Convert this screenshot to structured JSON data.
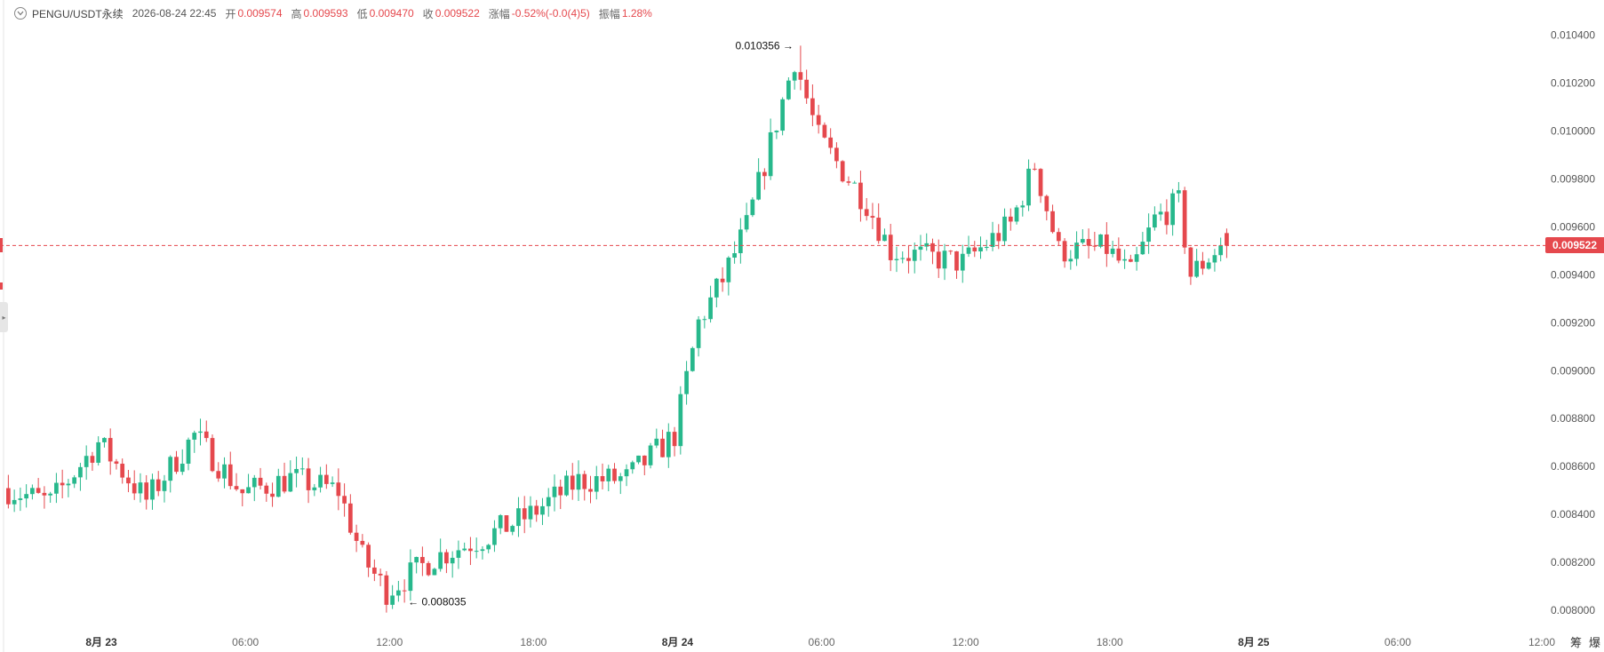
{
  "header": {
    "symbol": "PENGU/USDT永续",
    "datetime": "2026-08-24 22:45",
    "open_label": "开",
    "open": "0.009574",
    "high_label": "高",
    "high": "0.009593",
    "low_label": "低",
    "low": "0.009470",
    "close_label": "收",
    "close": "0.009522",
    "change_label": "涨幅",
    "change": "-0.52%(-0.0(4)5)",
    "amplitude_label": "振幅",
    "amplitude": "1.28%"
  },
  "current_price": "0.009522",
  "price_axis_labels": [
    "0.010400",
    "0.010200",
    "0.010000",
    "0.009800",
    "0.009600",
    "0.009400",
    "0.009200",
    "0.009000",
    "0.008800",
    "0.008600",
    "0.008400",
    "0.008200",
    "0.008000"
  ],
  "time_axis_labels": [
    "8月 23",
    "06:00",
    "12:00",
    "18:00",
    "8月 24",
    "06:00",
    "12:00",
    "18:00",
    "8月 25",
    "06:00",
    "12:00"
  ],
  "max_marker": "0.010356",
  "min_marker": "0.008035",
  "corner_buttons": [
    "筹",
    "爆"
  ],
  "colors": {
    "up": "#27b88c",
    "down": "#e5484d",
    "current_line": "#e5484d",
    "axis_text": "#555555"
  },
  "chart_data": {
    "type": "candlestick",
    "interval": "15m",
    "y_range": [
      0.00793,
      0.01045
    ],
    "x_range": [
      "2026-08-22 20:00",
      "2026-08-25 12:00"
    ],
    "first_candle_time": "2026-08-22 20:00",
    "ohlc_fields": [
      "open",
      "high",
      "low",
      "close"
    ],
    "anchors": [
      {
        "time": "2026-08-22 20:00",
        "close": 0.00851
      },
      {
        "time": "2026-08-22 22:00",
        "close": 0.00845
      },
      {
        "time": "2026-08-23 00:00",
        "close": 0.0087
      },
      {
        "time": "2026-08-23 02:00",
        "close": 0.00846
      },
      {
        "time": "2026-08-23 04:00",
        "close": 0.00873
      },
      {
        "time": "2026-08-23 06:00",
        "close": 0.00849
      },
      {
        "time": "2026-08-23 08:00",
        "close": 0.00855
      },
      {
        "time": "2026-08-23 10:00",
        "close": 0.0085
      },
      {
        "time": "2026-08-23 11:00",
        "close": 0.00822
      },
      {
        "time": "2026-08-23 12:00",
        "close": 0.00808
      },
      {
        "time": "2026-08-23 14:00",
        "close": 0.00822
      },
      {
        "time": "2026-08-23 16:00",
        "close": 0.0083
      },
      {
        "time": "2026-08-23 18:00",
        "close": 0.0084
      },
      {
        "time": "2026-08-23 20:00",
        "close": 0.00854
      },
      {
        "time": "2026-08-23 22:00",
        "close": 0.00855
      },
      {
        "time": "2026-08-24 00:00",
        "close": 0.00873
      },
      {
        "time": "2026-08-24 01:00",
        "close": 0.0092
      },
      {
        "time": "2026-08-24 02:00",
        "close": 0.00938
      },
      {
        "time": "2026-08-24 03:00",
        "close": 0.0096
      },
      {
        "time": "2026-08-24 04:00",
        "close": 0.00995
      },
      {
        "time": "2026-08-24 05:00",
        "close": 0.0103
      },
      {
        "time": "2026-08-24 06:00",
        "close": 0.00997
      },
      {
        "time": "2026-08-24 08:00",
        "close": 0.0097
      },
      {
        "time": "2026-08-24 09:00",
        "close": 0.0095
      },
      {
        "time": "2026-08-24 12:00",
        "close": 0.00945
      },
      {
        "time": "2026-08-24 14:00",
        "close": 0.00961
      },
      {
        "time": "2026-08-24 15:00",
        "close": 0.00986
      },
      {
        "time": "2026-08-24 16:00",
        "close": 0.0095
      },
      {
        "time": "2026-08-24 18:00",
        "close": 0.00951
      },
      {
        "time": "2026-08-24 19:00",
        "close": 0.0094
      },
      {
        "time": "2026-08-24 20:00",
        "close": 0.00963
      },
      {
        "time": "2026-08-24 21:00",
        "close": 0.0097
      },
      {
        "time": "2026-08-24 21:30",
        "close": 0.0094
      },
      {
        "time": "2026-08-24 22:45",
        "close": 0.009522
      }
    ],
    "extremes": [
      {
        "label": "high",
        "time": "2026-08-24 05:00",
        "value": 0.010356
      },
      {
        "label": "low",
        "time": "2026-08-23 12:30",
        "value": 0.008035
      }
    ],
    "last_candle": {
      "time": "2026-08-24 22:45",
      "open": 0.009574,
      "high": 0.009593,
      "low": 0.00947,
      "close": 0.009522
    }
  }
}
